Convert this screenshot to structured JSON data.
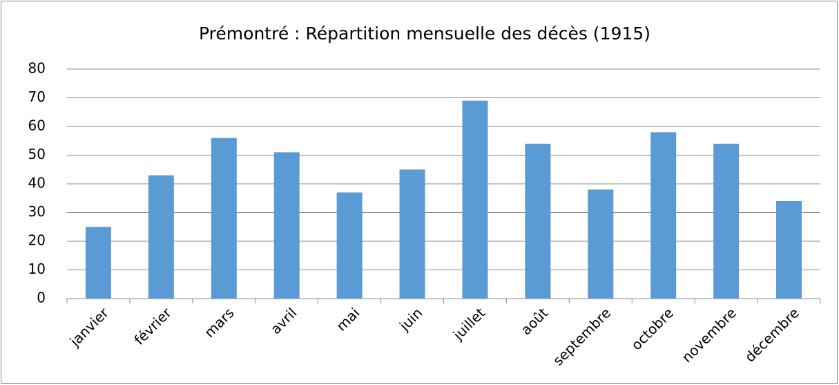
{
  "chart_data": {
    "type": "bar",
    "title": "Prémontré : Répartition mensuelle des décès (1915)",
    "categories": [
      "janvier",
      "février",
      "mars",
      "avril",
      "mai",
      "juin",
      "juillet",
      "août",
      "septembre",
      "octobre",
      "novembre",
      "décembre"
    ],
    "values": [
      25,
      43,
      56,
      51,
      37,
      45,
      69,
      54,
      38,
      58,
      54,
      34
    ],
    "color": "#5b9bd5",
    "ylim": [
      0,
      80
    ],
    "yticks": [
      0,
      10,
      20,
      30,
      40,
      50,
      60,
      70,
      80
    ],
    "grid": true
  }
}
